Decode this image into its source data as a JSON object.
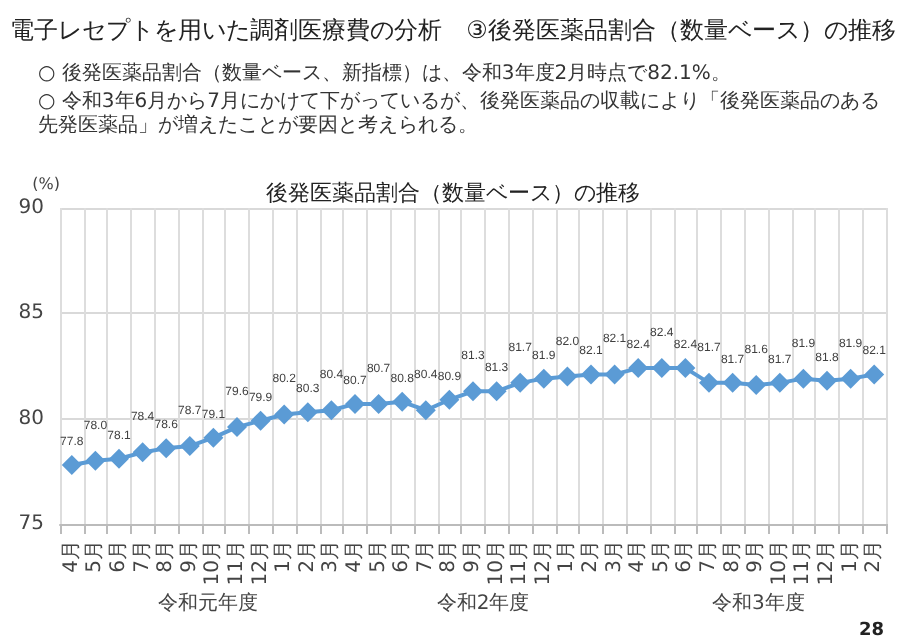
{
  "chart_data": {
    "type": "line",
    "title": "電子レセプトを用いた調剤医療費の分析　③後発医薬品割合（数量ベース）の推移",
    "subtitle": "後発医薬品割合（数量ベース）の推移",
    "ylabel": "(%)",
    "categories": [
      "4月",
      "5月",
      "6月",
      "7月",
      "8月",
      "9月",
      "10月",
      "11月",
      "12月",
      "1月",
      "2月",
      "3月",
      "4月",
      "5月",
      "6月",
      "7月",
      "8月",
      "9月",
      "10月",
      "11月",
      "12月",
      "1月",
      "2月",
      "3月",
      "4月",
      "5月",
      "6月",
      "7月",
      "8月",
      "9月",
      "10月",
      "11月",
      "12月",
      "1月",
      "2月"
    ],
    "series": [
      {
        "color": "#5b9bd5",
        "values": [
          77.8,
          78.0,
          78.1,
          78.4,
          78.6,
          78.7,
          79.1,
          79.6,
          79.9,
          80.2,
          80.3,
          80.4,
          80.7,
          80.7,
          80.8,
          80.4,
          80.9,
          81.3,
          81.3,
          81.7,
          81.9,
          82.0,
          82.1,
          82.1,
          82.4,
          82.4,
          82.4,
          81.7,
          81.7,
          81.6,
          81.7,
          81.9,
          81.8,
          81.9,
          82.1
        ],
        "value_labels": [
          "77.8",
          "78.0",
          "78.1",
          "78.4",
          "78.6",
          "78.7",
          "79.1",
          "79.6",
          "79.9",
          "80.2",
          "80.3",
          "80.4",
          "80.7",
          "80.7",
          "80.8",
          "80.4",
          "80.9",
          "81.3",
          "81.3",
          "81.7",
          "81.9",
          "82.0",
          "82.1",
          "82.1",
          "82.4",
          "82.4",
          "82.4",
          "81.7",
          "81.7",
          "81.6",
          "81.7",
          "81.9",
          "81.8",
          "81.9",
          "82.1"
        ]
      }
    ],
    "ylim": [
      75,
      90
    ],
    "yticks": [
      75,
      80,
      85,
      90
    ],
    "grid": true,
    "marker": "diamond",
    "annotations": [
      "○ 後発医薬品割合（数量ベース、新指標）は、令和3年度2月時点で82.1%。",
      "○ 令和3年6月から7月にかけて下がっているが、後発医薬品の収載により「後発医薬品のある先発医薬品」が増えたことが要因と考えられる。",
      "令和元年度",
      "令和2年度",
      "令和3年度",
      "28"
    ]
  }
}
